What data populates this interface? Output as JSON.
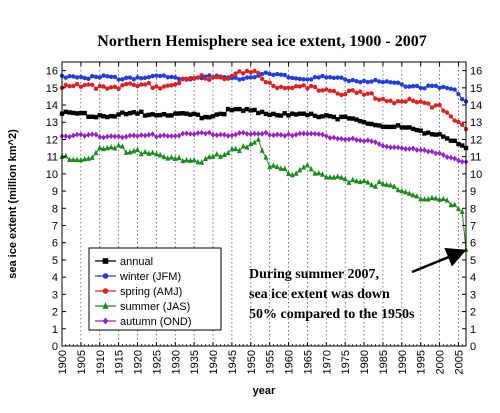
{
  "chart_data": {
    "type": "line",
    "title": "Northern Hemisphere sea ice extent, 1900 - 2007",
    "xlabel": "year",
    "ylabel": "sea ice extent (million km^2)",
    "xlim": [
      1900,
      2007
    ],
    "ylim": [
      0,
      16.5
    ],
    "y_ticks": [
      0,
      1,
      2,
      3,
      4,
      5,
      6,
      7,
      8,
      9,
      10,
      11,
      12,
      13,
      14,
      15,
      16
    ],
    "x_ticks": [
      1900,
      1905,
      1910,
      1915,
      1920,
      1925,
      1930,
      1935,
      1940,
      1945,
      1950,
      1955,
      1960,
      1965,
      1970,
      1975,
      1980,
      1985,
      1990,
      1995,
      2000,
      2005
    ],
    "grid": "vertical dotted lines at every 5 years",
    "legend_position": "lower-left",
    "annotation": {
      "lines": [
        "During summer 2007,",
        "sea ice extent was down",
        "50% compared to the 1950s"
      ],
      "arrow_to": {
        "x": 2007,
        "y": 5.6
      }
    },
    "series": [
      {
        "name": "annual",
        "color": "#000000",
        "marker": "square",
        "anchors": [
          [
            1900,
            13.5
          ],
          [
            1910,
            13.4
          ],
          [
            1920,
            13.5
          ],
          [
            1930,
            13.5
          ],
          [
            1938,
            13.3
          ],
          [
            1945,
            13.7
          ],
          [
            1953,
            13.6
          ],
          [
            1960,
            13.4
          ],
          [
            1970,
            13.4
          ],
          [
            1980,
            13.0
          ],
          [
            1990,
            12.7
          ],
          [
            2000,
            12.3
          ],
          [
            2007,
            11.5
          ]
        ],
        "noise": 0.12
      },
      {
        "name": "winter (JFM)",
        "color": "#1f3de0",
        "marker": "circle",
        "anchors": [
          [
            1900,
            15.7
          ],
          [
            1910,
            15.6
          ],
          [
            1920,
            15.6
          ],
          [
            1930,
            15.6
          ],
          [
            1940,
            15.6
          ],
          [
            1950,
            15.6
          ],
          [
            1953,
            15.8
          ],
          [
            1960,
            15.6
          ],
          [
            1970,
            15.6
          ],
          [
            1980,
            15.4
          ],
          [
            1990,
            15.2
          ],
          [
            2000,
            15.0
          ],
          [
            2004,
            14.9
          ],
          [
            2007,
            14.2
          ]
        ],
        "noise": 0.12
      },
      {
        "name": "spring (AMJ)",
        "color": "#e02020",
        "marker": "circle",
        "anchors": [
          [
            1900,
            15.0
          ],
          [
            1910,
            15.1
          ],
          [
            1920,
            15.1
          ],
          [
            1930,
            15.2
          ],
          [
            1936,
            15.6
          ],
          [
            1945,
            15.7
          ],
          [
            1950,
            15.9
          ],
          [
            1955,
            15.3
          ],
          [
            1960,
            15.0
          ],
          [
            1970,
            14.9
          ],
          [
            1980,
            14.6
          ],
          [
            1990,
            14.2
          ],
          [
            2000,
            14.0
          ],
          [
            2007,
            12.6
          ]
        ],
        "noise": 0.2
      },
      {
        "name": "summer (JAS)",
        "color": "#1a8a1a",
        "marker": "triangle",
        "anchors": [
          [
            1900,
            11.0
          ],
          [
            1905,
            10.8
          ],
          [
            1912,
            11.5
          ],
          [
            1920,
            11.4
          ],
          [
            1928,
            10.9
          ],
          [
            1935,
            10.8
          ],
          [
            1942,
            11.0
          ],
          [
            1948,
            11.6
          ],
          [
            1952,
            12.0
          ],
          [
            1955,
            10.4
          ],
          [
            1960,
            10.0
          ],
          [
            1965,
            10.5
          ],
          [
            1970,
            9.8
          ],
          [
            1980,
            9.6
          ],
          [
            1990,
            9.0
          ],
          [
            2000,
            8.5
          ],
          [
            2006,
            7.8
          ],
          [
            2007,
            5.6
          ]
        ],
        "noise": 0.22
      },
      {
        "name": "autumn (OND)",
        "color": "#9a1fc8",
        "marker": "diamond",
        "anchors": [
          [
            1900,
            12.2
          ],
          [
            1920,
            12.2
          ],
          [
            1935,
            12.3
          ],
          [
            1950,
            12.3
          ],
          [
            1960,
            12.3
          ],
          [
            1970,
            12.2
          ],
          [
            1980,
            11.9
          ],
          [
            1990,
            11.5
          ],
          [
            2000,
            11.2
          ],
          [
            2007,
            10.7
          ]
        ],
        "noise": 0.1
      }
    ]
  }
}
